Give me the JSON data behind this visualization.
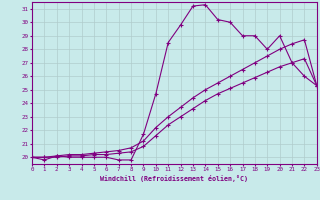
{
  "xlabel": "Windchill (Refroidissement éolien,°C)",
  "bg_color": "#c8eaea",
  "line_color": "#800080",
  "grid_color": "#b0cccc",
  "xmin": 0,
  "xmax": 23,
  "ymin": 19.5,
  "ymax": 31.5,
  "yticks": [
    20,
    21,
    22,
    23,
    24,
    25,
    26,
    27,
    28,
    29,
    30,
    31
  ],
  "xticks": [
    0,
    1,
    2,
    3,
    4,
    5,
    6,
    7,
    8,
    9,
    10,
    11,
    12,
    13,
    14,
    15,
    16,
    17,
    18,
    19,
    20,
    21,
    22,
    23
  ],
  "line1_x": [
    0,
    1,
    2,
    3,
    4,
    5,
    6,
    7,
    8,
    9,
    10,
    11,
    12,
    13,
    14,
    15,
    16,
    17,
    18,
    19,
    20,
    21,
    22,
    23
  ],
  "line1_y": [
    20.0,
    19.8,
    20.1,
    20.0,
    20.0,
    20.0,
    20.0,
    19.8,
    19.8,
    21.7,
    24.7,
    28.5,
    29.8,
    31.2,
    31.3,
    30.2,
    30.0,
    29.0,
    29.0,
    28.0,
    29.0,
    27.0,
    26.0,
    25.3
  ],
  "line2_x": [
    0,
    1,
    2,
    3,
    4,
    5,
    6,
    7,
    8,
    9,
    10,
    11,
    12,
    13,
    14,
    15,
    16,
    17,
    18,
    19,
    20,
    21,
    22,
    23
  ],
  "line2_y": [
    20.0,
    20.0,
    20.1,
    20.2,
    20.2,
    20.3,
    20.4,
    20.5,
    20.7,
    21.2,
    22.2,
    23.0,
    23.7,
    24.4,
    25.0,
    25.5,
    26.0,
    26.5,
    27.0,
    27.5,
    28.0,
    28.4,
    28.7,
    25.3
  ],
  "line3_x": [
    0,
    1,
    2,
    3,
    4,
    5,
    6,
    7,
    8,
    9,
    10,
    11,
    12,
    13,
    14,
    15,
    16,
    17,
    18,
    19,
    20,
    21,
    22,
    23
  ],
  "line3_y": [
    20.0,
    20.0,
    20.0,
    20.1,
    20.1,
    20.2,
    20.2,
    20.3,
    20.4,
    20.8,
    21.6,
    22.4,
    23.0,
    23.6,
    24.2,
    24.7,
    25.1,
    25.5,
    25.9,
    26.3,
    26.7,
    27.0,
    27.3,
    25.3
  ]
}
